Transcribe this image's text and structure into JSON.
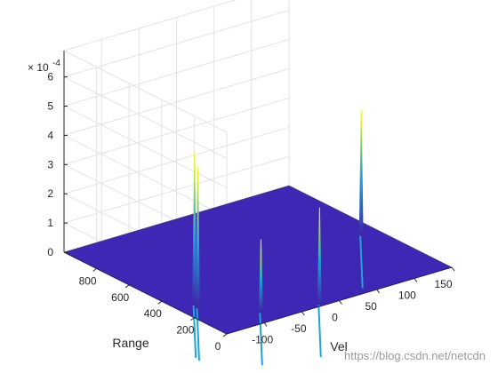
{
  "chart_data": {
    "type": "surface",
    "title": "",
    "xlabel": "Vel",
    "ylabel": "Range",
    "zlabel": "",
    "x_ticks": [
      "-100",
      "-50",
      "0",
      "50",
      "100",
      "150"
    ],
    "y_ticks": [
      "0",
      "200",
      "400",
      "600",
      "800"
    ],
    "z_ticks": [
      "0",
      "1",
      "2",
      "3",
      "4",
      "5",
      "6"
    ],
    "z_exponent": "× 10",
    "z_exponent_power": "-4",
    "xlim": [
      -150,
      150
    ],
    "ylim": [
      0,
      1000
    ],
    "zlim": [
      0,
      6.9
    ],
    "floor_value": 0,
    "grid": true,
    "colormap": "parula",
    "peaks": [
      {
        "vel": -128,
        "range": 300,
        "z": 5.2
      },
      {
        "vel": -130,
        "range": 270,
        "z": 4.8
      },
      {
        "vel": -85,
        "range": 90,
        "z": 2.5
      },
      {
        "vel": -22,
        "range": 20,
        "z": 3.3
      },
      {
        "vel": 128,
        "range": 455,
        "z": 4.3
      }
    ]
  },
  "watermark": "https://blog.csdn.net/netcdn",
  "colors": {
    "floor": "#3d27b4",
    "grid": "#e3e3e3",
    "axis": "#262626",
    "peak_low": "#3e26a8",
    "peak_mid": "#1fa4d6",
    "peak_high": "#f9fb0e"
  }
}
